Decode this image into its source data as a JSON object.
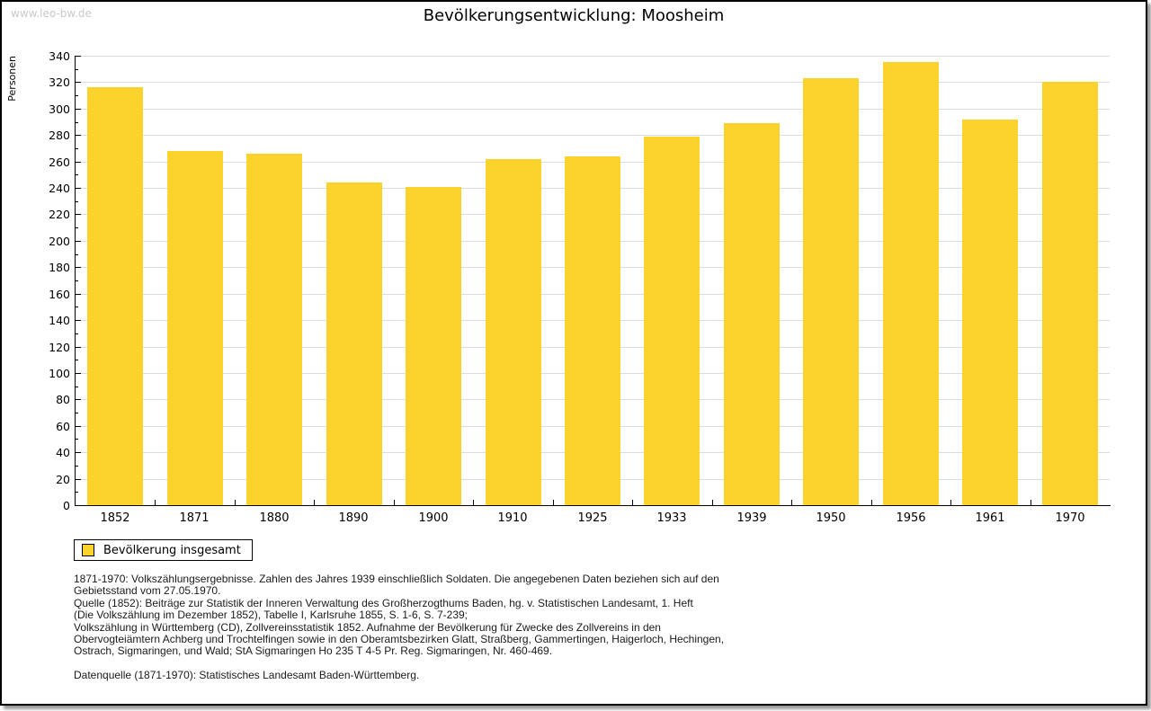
{
  "watermark": "www.leo-bw.de",
  "chart_data": {
    "type": "bar",
    "title": "Bevölkerungsentwicklung: Moosheim",
    "ylabel": "Personen",
    "xlabel": "",
    "categories": [
      "1852",
      "1871",
      "1880",
      "1890",
      "1900",
      "1910",
      "1925",
      "1933",
      "1939",
      "1950",
      "1956",
      "1961",
      "1970"
    ],
    "values": [
      316,
      268,
      266,
      244,
      241,
      262,
      264,
      279,
      289,
      323,
      335,
      292,
      320
    ],
    "series_name": "Bevölkerung insgesamt",
    "ylim": [
      0,
      340
    ],
    "ytick_step": 20,
    "y_minor_step": 10,
    "grid": true,
    "legend_position": "bottom-left"
  },
  "legend": {
    "label": "Bevölkerung insgesamt",
    "swatch_color": "#FCD32D"
  },
  "footnote": {
    "lines": [
      "1871-1970: Volkszählungsergebnisse. Zahlen des Jahres 1939 einschließlich Soldaten. Die angegebenen Daten beziehen sich auf den",
      "Gebietsstand vom 27.05.1970.",
      "Quelle (1852): Beiträge zur Statistik der Inneren Verwaltung des Großherzogthums Baden, hg. v. Statistischen Landesamt, 1. Heft",
      "(Die Volkszählung im Dezember 1852), Tabelle I, Karlsruhe 1855, S. 1-6, S. 7-239;",
      "Volkszählung in Württemberg (CD), Zollvereinsstatistik 1852. Aufnahme der Bevölkerung für Zwecke des Zollvereins in den",
      "Obervogteiämtern Achberg und Trochtelfingen sowie in den Oberamtsbezirken Glatt, Straßberg, Gammertingen, Haigerloch, Hechingen,",
      "Ostrach, Sigmaringen, und Wald; StA Sigmaringen Ho 235 T 4-5 Pr. Reg. Sigmaringen, Nr. 460-469."
    ],
    "datasource": "Datenquelle (1871-1970): Statistisches Landesamt Baden-Württemberg."
  },
  "colors": {
    "bar": "#FCD32D",
    "grid": "#DCDCDC",
    "axis": "#000000",
    "watermark": "#C9C9C9"
  }
}
